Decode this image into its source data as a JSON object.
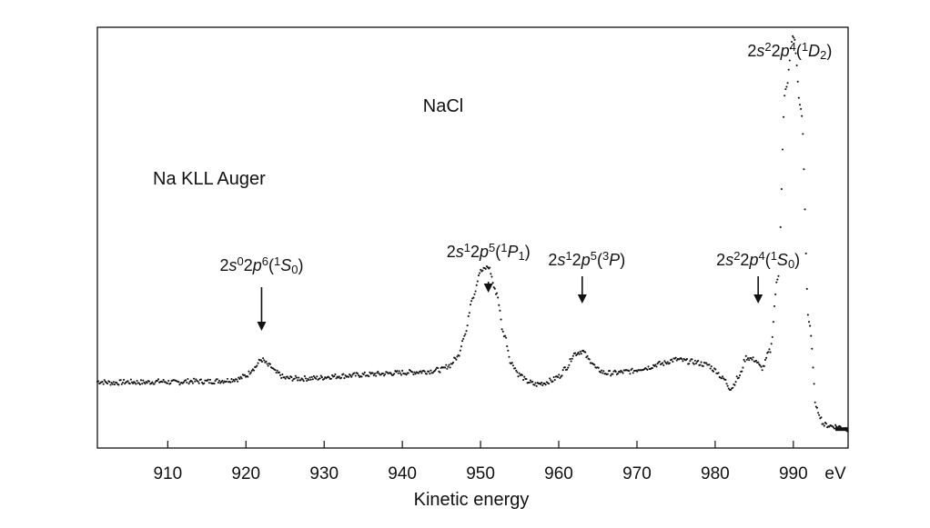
{
  "chart_data": {
    "type": "scatter",
    "title": "",
    "annotations": {
      "sample": "NaCl",
      "spectrum": "Na KLL Auger"
    },
    "xlabel": "Kinetic energy",
    "ylabel": "",
    "x_unit": "eV",
    "xlim": [
      901,
      997
    ],
    "ylim": [
      0,
      1
    ],
    "xticks": [
      910,
      920,
      930,
      940,
      950,
      960,
      970,
      980,
      990
    ],
    "grid": false,
    "legend": "none",
    "series": [
      {
        "x": [
          901,
          903,
          905,
          907,
          909,
          911,
          913,
          915,
          917,
          919,
          920,
          921,
          922,
          923,
          924,
          925,
          927,
          929,
          931,
          933,
          935,
          937,
          939,
          941,
          943,
          945,
          946,
          947,
          948,
          949,
          950,
          951,
          952,
          953,
          954,
          955,
          956,
          957,
          958,
          959,
          960,
          961,
          962,
          963,
          964,
          965,
          966,
          967,
          969,
          971,
          973,
          975,
          977,
          979,
          980,
          981,
          982,
          983,
          984,
          985,
          986,
          987,
          988,
          989,
          990,
          991,
          992,
          993,
          994,
          995,
          996,
          997
        ],
        "y": [
          0.158,
          0.155,
          0.157,
          0.156,
          0.158,
          0.156,
          0.159,
          0.158,
          0.16,
          0.164,
          0.172,
          0.19,
          0.21,
          0.195,
          0.178,
          0.166,
          0.165,
          0.166,
          0.17,
          0.172,
          0.174,
          0.176,
          0.178,
          0.18,
          0.182,
          0.186,
          0.196,
          0.215,
          0.27,
          0.36,
          0.42,
          0.43,
          0.37,
          0.27,
          0.2,
          0.174,
          0.158,
          0.151,
          0.154,
          0.16,
          0.17,
          0.192,
          0.224,
          0.23,
          0.208,
          0.186,
          0.178,
          0.178,
          0.182,
          0.19,
          0.2,
          0.21,
          0.205,
          0.198,
          0.185,
          0.165,
          0.142,
          0.168,
          0.215,
          0.21,
          0.19,
          0.23,
          0.4,
          0.85,
          0.98,
          0.8,
          0.3,
          0.09,
          0.055,
          0.052,
          0.05,
          0.045
        ]
      }
    ],
    "peak_labels": [
      {
        "x": 922,
        "pre": "2",
        "sub": "",
        "parts": [
          [
            "s",
            "0"
          ],
          [
            "2",
            "0"
          ],
          [
            "p",
            "6"
          ]
        ],
        "term": [
          "1",
          "S",
          "0"
        ],
        "text": "2s⁰2p⁶(¹S₀)"
      },
      {
        "x": 951,
        "text": "2s¹2p⁵(¹P₁)"
      },
      {
        "x": 963,
        "text": "2s¹2p⁵(³P)"
      },
      {
        "x": 985.5,
        "text": "2s²2p⁴(¹S₀)"
      },
      {
        "x": 990,
        "text": "2s²2p⁴(¹D₂)"
      }
    ]
  }
}
